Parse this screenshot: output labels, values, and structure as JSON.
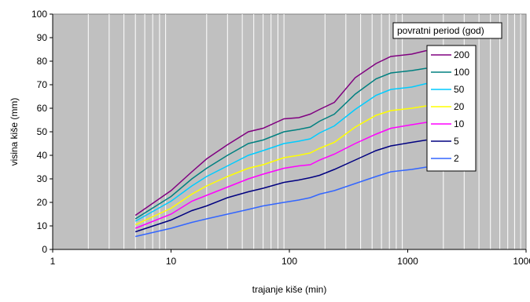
{
  "chart_data": {
    "type": "line",
    "title": "",
    "xlabel": "trajanje kiše (min)",
    "ylabel": "visina kiše (mm)",
    "xscale": "log",
    "xlim": [
      1,
      10000
    ],
    "ylim": [
      0,
      100
    ],
    "x_ticks": [
      "1",
      "10",
      "100",
      "1000",
      "10000"
    ],
    "y_ticks": [
      "0",
      "10",
      "20",
      "30",
      "40",
      "50",
      "60",
      "70",
      "80",
      "90",
      "100"
    ],
    "grid": "minor vertical log gridlines",
    "legend_title": "povratni period (god)",
    "legend_position": "right",
    "x": [
      5,
      10,
      15,
      20,
      30,
      45,
      60,
      90,
      120,
      150,
      180,
      240,
      360,
      540,
      720,
      1080,
      1440
    ],
    "series": [
      {
        "name": "200",
        "color": "#800080",
        "values": [
          14.5,
          25,
          33,
          38.5,
          44.5,
          50,
          51.5,
          55.5,
          56,
          57.5,
          59.5,
          62.5,
          73,
          79,
          82,
          83,
          84.5
        ]
      },
      {
        "name": "100",
        "color": "#008080",
        "values": [
          13,
          22.5,
          30,
          34.5,
          40,
          45,
          46.5,
          50,
          51,
          52,
          54.5,
          57.5,
          66,
          72.5,
          75,
          76,
          77
        ]
      },
      {
        "name": "50",
        "color": "#00ccff",
        "values": [
          12,
          20.5,
          27,
          31,
          35.5,
          40,
          42,
          45,
          46,
          47,
          49.5,
          52.5,
          59.5,
          65.5,
          68,
          69,
          70.5
        ]
      },
      {
        "name": "20",
        "color": "#ffff00",
        "values": [
          10.5,
          17.5,
          23.5,
          27,
          31,
          34.5,
          36,
          39,
          40,
          41,
          43,
          45.5,
          52,
          57,
          59,
          60,
          61
        ]
      },
      {
        "name": "10",
        "color": "#ff00ff",
        "values": [
          9,
          15,
          20.5,
          23,
          26.5,
          30,
          32,
          34.5,
          35.5,
          36,
          38,
          40.5,
          45,
          49,
          51.5,
          53,
          54
        ]
      },
      {
        "name": "5",
        "color": "#000080",
        "values": [
          7.5,
          12.5,
          16.5,
          18.5,
          22,
          24.5,
          26,
          28.5,
          29.5,
          30.5,
          31.5,
          34,
          38,
          42,
          44,
          45.5,
          46.5
        ]
      },
      {
        "name": "2",
        "color": "#3366ff",
        "values": [
          5.5,
          9,
          11.5,
          13,
          15,
          17,
          18.5,
          20,
          21,
          22,
          23.5,
          25,
          28,
          31,
          33,
          34,
          35
        ]
      }
    ]
  }
}
